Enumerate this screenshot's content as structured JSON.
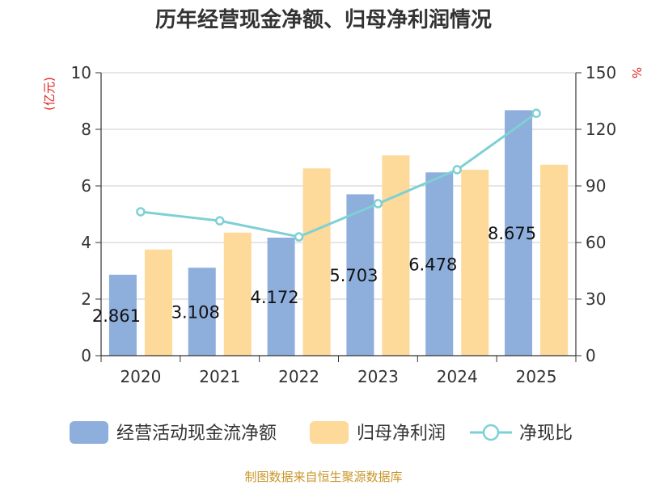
{
  "chart_data": {
    "type": "bar",
    "title": "历年经营现金净额、归母净利润情况",
    "categories": [
      "2020",
      "2021",
      "2022",
      "2023",
      "2024",
      "2025"
    ],
    "series": [
      {
        "name": "经营活动现金流净额",
        "kind": "bar",
        "axis": "left",
        "color": "#8eaedb",
        "values": [
          2.861,
          3.108,
          4.172,
          5.703,
          6.478,
          8.675
        ],
        "labels": [
          "2.861",
          "3.108",
          "4.172",
          "5.703",
          "6.478",
          "8.675"
        ]
      },
      {
        "name": "归母净利润",
        "kind": "bar",
        "axis": "left",
        "color": "#fdd99a",
        "values": [
          3.75,
          4.35,
          6.62,
          7.08,
          6.57,
          6.75
        ]
      },
      {
        "name": "净现比",
        "kind": "line",
        "axis": "right",
        "color": "#7fd0d4",
        "values": [
          76.3,
          71.5,
          63.0,
          80.6,
          98.6,
          128.5
        ]
      }
    ],
    "y_left": {
      "label": "(亿元)",
      "ylim": [
        0,
        10
      ],
      "ticks": [
        "0",
        "2",
        "4",
        "6",
        "8",
        "10"
      ]
    },
    "y_right": {
      "label": "%",
      "ylim": [
        0,
        150
      ],
      "ticks": [
        "0",
        "30",
        "60",
        "90",
        "120",
        "150"
      ]
    },
    "grid": true,
    "legend_position": "bottom",
    "source": "制图数据来自恒生聚源数据库"
  }
}
